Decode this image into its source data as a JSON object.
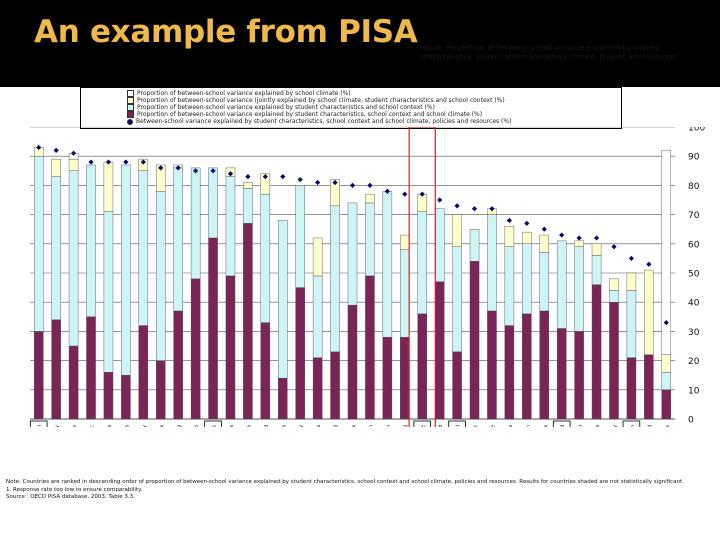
{
  "slide": {
    "title": "An example from PISA",
    "figure_title": "Figure: Percentage of between-school variance explained by student characteristics, school context and school climate, policies and resources"
  },
  "legend": [
    {
      "label": "Proportion of between-school variance explained by school climate (%)",
      "color": "#ffffff"
    },
    {
      "label": "Proportion of between-school variance (jointly explained by school climate, student characteristics and school context (%)",
      "color": "#ffffcc"
    },
    {
      "label": "Proportion of between-school variance explained by student characteristics and school context (%)",
      "color": "#cdf5f5"
    },
    {
      "label": "Proportion of between-school variance explained by student characteristics, school context and school climate (%)",
      "color": "#7b2458"
    },
    {
      "label": "Between-school variance explained by student characteristics, school context and school climate, policies and resources (%)",
      "color": "#0a0a6e"
    }
  ],
  "chart_data": {
    "type": "bar",
    "ylim": [
      0,
      100
    ],
    "yticks": [
      "0",
      "10",
      "20",
      "30",
      "40",
      "50",
      "60",
      "70",
      "80",
      "90",
      "100"
    ],
    "categories": [
      "Portugal",
      "Hungary",
      "Chile",
      "Czech Republic",
      "FYR Macedonia",
      "Argentina",
      "Germany",
      "Bulgaria",
      "Hong Kong",
      "Mexico",
      "United States",
      "Albania",
      "Austria",
      "New Zealand",
      "Korea",
      "Italy",
      "Hungarian Romania",
      "Poland",
      "Australia",
      "Sweden",
      "United Kingdom",
      "Switzerland",
      "OECD average",
      "Iceland",
      "Israel",
      "Denmark",
      "Greece",
      "Latvia",
      "Spain",
      "Lithuania",
      "Thailand",
      "Peru",
      "Canada",
      "Norway",
      "Russian Federation",
      "Finland",
      "Netherlands"
    ],
    "series": [
      {
        "name": "Student characteristics, school context and school climate",
        "color": "#7b2458",
        "values": [
          30,
          34,
          25,
          35,
          16,
          15,
          32,
          20,
          37,
          48,
          62,
          49,
          67,
          33,
          14,
          45,
          21,
          23,
          39,
          49,
          28,
          28,
          36,
          47,
          23,
          54,
          37,
          32,
          36,
          37,
          31,
          30,
          46,
          40,
          21,
          22,
          10
        ]
      },
      {
        "name": "Student characteristics and school context",
        "color": "#cdf5f5",
        "values": [
          60,
          49,
          60,
          52,
          55,
          72,
          53,
          58,
          49,
          38,
          24,
          34,
          12,
          44,
          54,
          35,
          28,
          50,
          35,
          25,
          50,
          30,
          35,
          25,
          36,
          11,
          33,
          27,
          24,
          20,
          30,
          29,
          10,
          4,
          23,
          0,
          6
        ]
      },
      {
        "name": "Jointly explained",
        "color": "#ffffcc",
        "values": [
          3,
          6,
          4,
          0,
          17,
          0,
          4,
          9,
          0,
          0,
          0,
          3,
          2,
          7,
          0,
          0,
          13,
          9,
          0,
          3,
          0,
          5,
          6,
          0,
          11,
          0,
          2,
          7,
          4,
          6,
          0,
          2,
          4,
          4,
          6,
          29,
          6
        ]
      },
      {
        "name": "School climate",
        "color": "#ffffff",
        "values": [
          0,
          0,
          2,
          0,
          0,
          0,
          0,
          0,
          1,
          0,
          0,
          0,
          0,
          0,
          0,
          0,
          0,
          0,
          0,
          0,
          0,
          0,
          0,
          0,
          0,
          0,
          0,
          0,
          0,
          0,
          0,
          0,
          0,
          0,
          0,
          0,
          70
        ]
      }
    ],
    "marker_series": {
      "name": "Between-school variance explained by student characteristics, school context and school climate, policies and resources",
      "color": "#0a0a6e",
      "values": [
        93,
        92,
        91,
        88,
        88,
        88,
        88,
        86,
        86,
        85,
        85,
        84,
        83,
        83,
        83,
        82,
        81,
        81,
        80,
        80,
        78,
        77,
        77,
        75,
        73,
        72,
        72,
        68,
        67,
        65,
        63,
        62,
        62,
        59,
        55,
        53,
        33
      ]
    },
    "boxed_categories": [
      "Portugal",
      "United States",
      "OECD average",
      "Israel",
      "Thailand",
      "Russian Federation"
    ],
    "highlighted_category": "OECD average"
  },
  "notes": {
    "line1": "Note: Countries are ranked in descending order of proportion of between-school variance explained by student characteristics, school context and school climate, policies and resources. Results for countries shaded are not statistically significant.",
    "line2": "1. Response rate too low to ensure comparability.",
    "line3": "Source : OECD PISA database, 2003, Table 3.3."
  }
}
